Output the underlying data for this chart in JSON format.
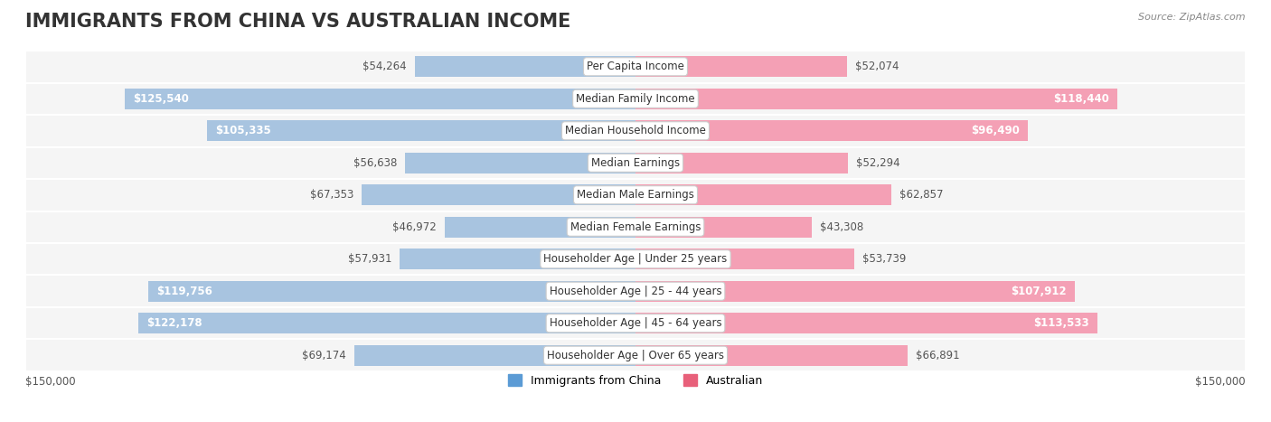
{
  "title": "IMMIGRANTS FROM CHINA VS AUSTRALIAN INCOME",
  "source": "Source: ZipAtlas.com",
  "categories": [
    "Per Capita Income",
    "Median Family Income",
    "Median Household Income",
    "Median Earnings",
    "Median Male Earnings",
    "Median Female Earnings",
    "Householder Age | Under 25 years",
    "Householder Age | 25 - 44 years",
    "Householder Age | 45 - 64 years",
    "Householder Age | Over 65 years"
  ],
  "china_values": [
    54264,
    125540,
    105335,
    56638,
    67353,
    46972,
    57931,
    119756,
    122178,
    69174
  ],
  "australia_values": [
    52074,
    118440,
    96490,
    52294,
    62857,
    43308,
    53739,
    107912,
    113533,
    66891
  ],
  "china_color_bar": "#a8c4e0",
  "australia_color_bar": "#f4a0b5",
  "china_color_label": "#5b9bd5",
  "australia_color_label": "#e8607a",
  "china_label": "Immigrants from China",
  "australia_label": "Australian",
  "max_value": 150000,
  "background_color": "#f5f5f5",
  "row_bg_light": "#fafafa",
  "row_bg_dark": "#f0f0f0",
  "title_fontsize": 15,
  "label_fontsize": 8.5,
  "value_fontsize": 8.5,
  "axis_label_bottom": "$150,000"
}
